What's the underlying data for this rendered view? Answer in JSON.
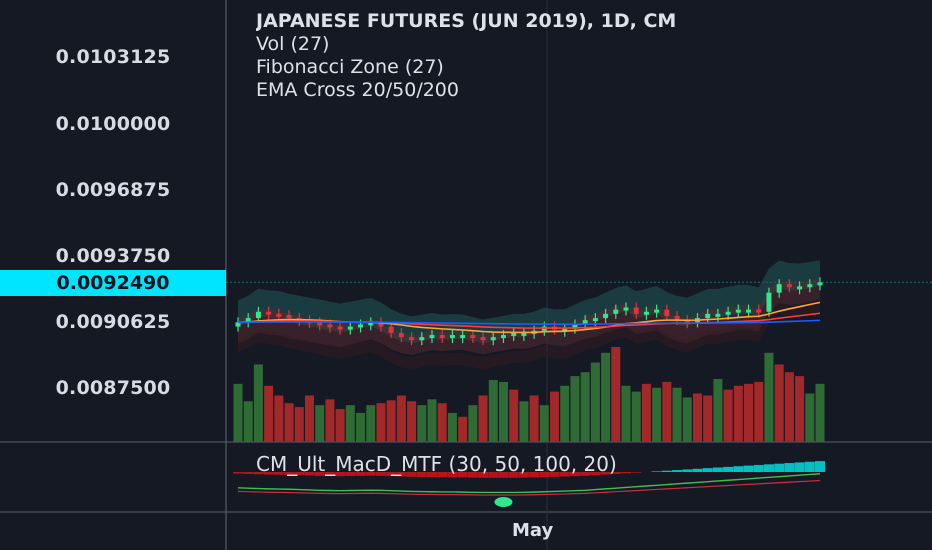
{
  "header": {
    "title": "JAPANESE FUTURES (JUN 2019), 1D, CM",
    "indicators": [
      "Vol (27)",
      "Fibonacci Zone (27)",
      "EMA Cross 20/50/200"
    ]
  },
  "price_axis": {
    "labels": [
      "0.0103125",
      "0.0100000",
      "0.0096875",
      "0.0093750",
      "0.0090625",
      "0.0087500"
    ],
    "current_price": "0.0092490"
  },
  "time_axis": {
    "labels": [
      "May"
    ]
  },
  "macd_panel": {
    "label": "CM_Ult_MacD_MTF (30, 50, 100, 20)"
  },
  "colors": {
    "background": "#151924",
    "up": "#2ee88a",
    "down": "#e0333a",
    "vol_up": "#2f6b34",
    "vol_down": "#a3282a",
    "price_tag": "#00e5ff"
  },
  "chart_data": {
    "type": "candlestick",
    "title": "JAPANESE FUTURES (JUN 2019), 1D, CM",
    "y_ticks": [
      0.0103125,
      0.01,
      0.0096875,
      0.009375,
      0.0090625,
      0.00875
    ],
    "ylim": [
      0.00855,
      0.0106
    ],
    "last_price": 0.009249,
    "close": [
      0.00906,
      0.00908,
      0.00911,
      0.0091,
      0.009095,
      0.00908,
      0.00907,
      0.00906,
      0.00905,
      0.00904,
      0.00903,
      0.00904,
      0.00905,
      0.00906,
      0.00904,
      0.00901,
      0.00899,
      0.00898,
      0.00899,
      0.009,
      0.008995,
      0.009,
      0.009,
      0.00899,
      0.00898,
      0.00899,
      0.009,
      0.00901,
      0.00901,
      0.00902,
      0.00904,
      0.00903,
      0.00903,
      0.00905,
      0.00907,
      0.00908,
      0.0091,
      0.00912,
      0.00913,
      0.0091,
      0.00911,
      0.00912,
      0.00909,
      0.00907,
      0.00906,
      0.00908,
      0.0091,
      0.0091,
      0.00911,
      0.00912,
      0.00912,
      0.00911,
      0.0092,
      0.00924,
      0.00923,
      0.00923,
      0.00924,
      0.009249
    ],
    "volume": [
      60,
      42,
      80,
      58,
      48,
      40,
      36,
      48,
      38,
      44,
      34,
      38,
      30,
      38,
      40,
      43,
      48,
      42,
      38,
      44,
      40,
      30,
      26,
      38,
      48,
      64,
      62,
      54,
      42,
      48,
      38,
      52,
      58,
      68,
      72,
      82,
      92,
      98,
      58,
      52,
      60,
      56,
      62,
      56,
      46,
      50,
      48,
      65,
      54,
      58,
      60,
      62,
      92,
      80,
      72,
      68,
      50,
      60
    ],
    "vol_up": [
      1,
      1,
      1,
      0,
      0,
      0,
      0,
      0,
      1,
      0,
      0,
      1,
      1,
      1,
      0,
      0,
      0,
      0,
      1,
      1,
      0,
      1,
      0,
      1,
      0,
      1,
      1,
      0,
      1,
      0,
      1,
      0,
      1,
      1,
      1,
      1,
      1,
      0,
      1,
      1,
      0,
      1,
      0,
      1,
      1,
      0,
      0,
      1,
      0,
      0,
      0,
      0,
      1,
      0,
      0,
      0,
      1,
      1
    ],
    "macd": [
      -0.1,
      -0.12,
      -0.14,
      -0.16,
      -0.17,
      -0.18,
      -0.2,
      -0.22,
      -0.24,
      -0.25,
      -0.26,
      -0.25,
      -0.24,
      -0.23,
      -0.24,
      -0.26,
      -0.28,
      -0.3,
      -0.31,
      -0.32,
      -0.33,
      -0.33,
      -0.34,
      -0.35,
      -0.36,
      -0.36,
      -0.36,
      -0.36,
      -0.35,
      -0.34,
      -0.32,
      -0.3,
      -0.28,
      -0.26,
      -0.24,
      -0.2,
      -0.16,
      -0.12,
      -0.08,
      -0.04,
      0.0,
      0.04,
      0.08,
      0.12,
      0.16,
      0.2,
      0.24,
      0.28,
      0.32,
      0.36,
      0.4,
      0.44,
      0.48,
      0.52,
      0.56,
      0.6,
      0.64,
      0.68
    ]
  }
}
